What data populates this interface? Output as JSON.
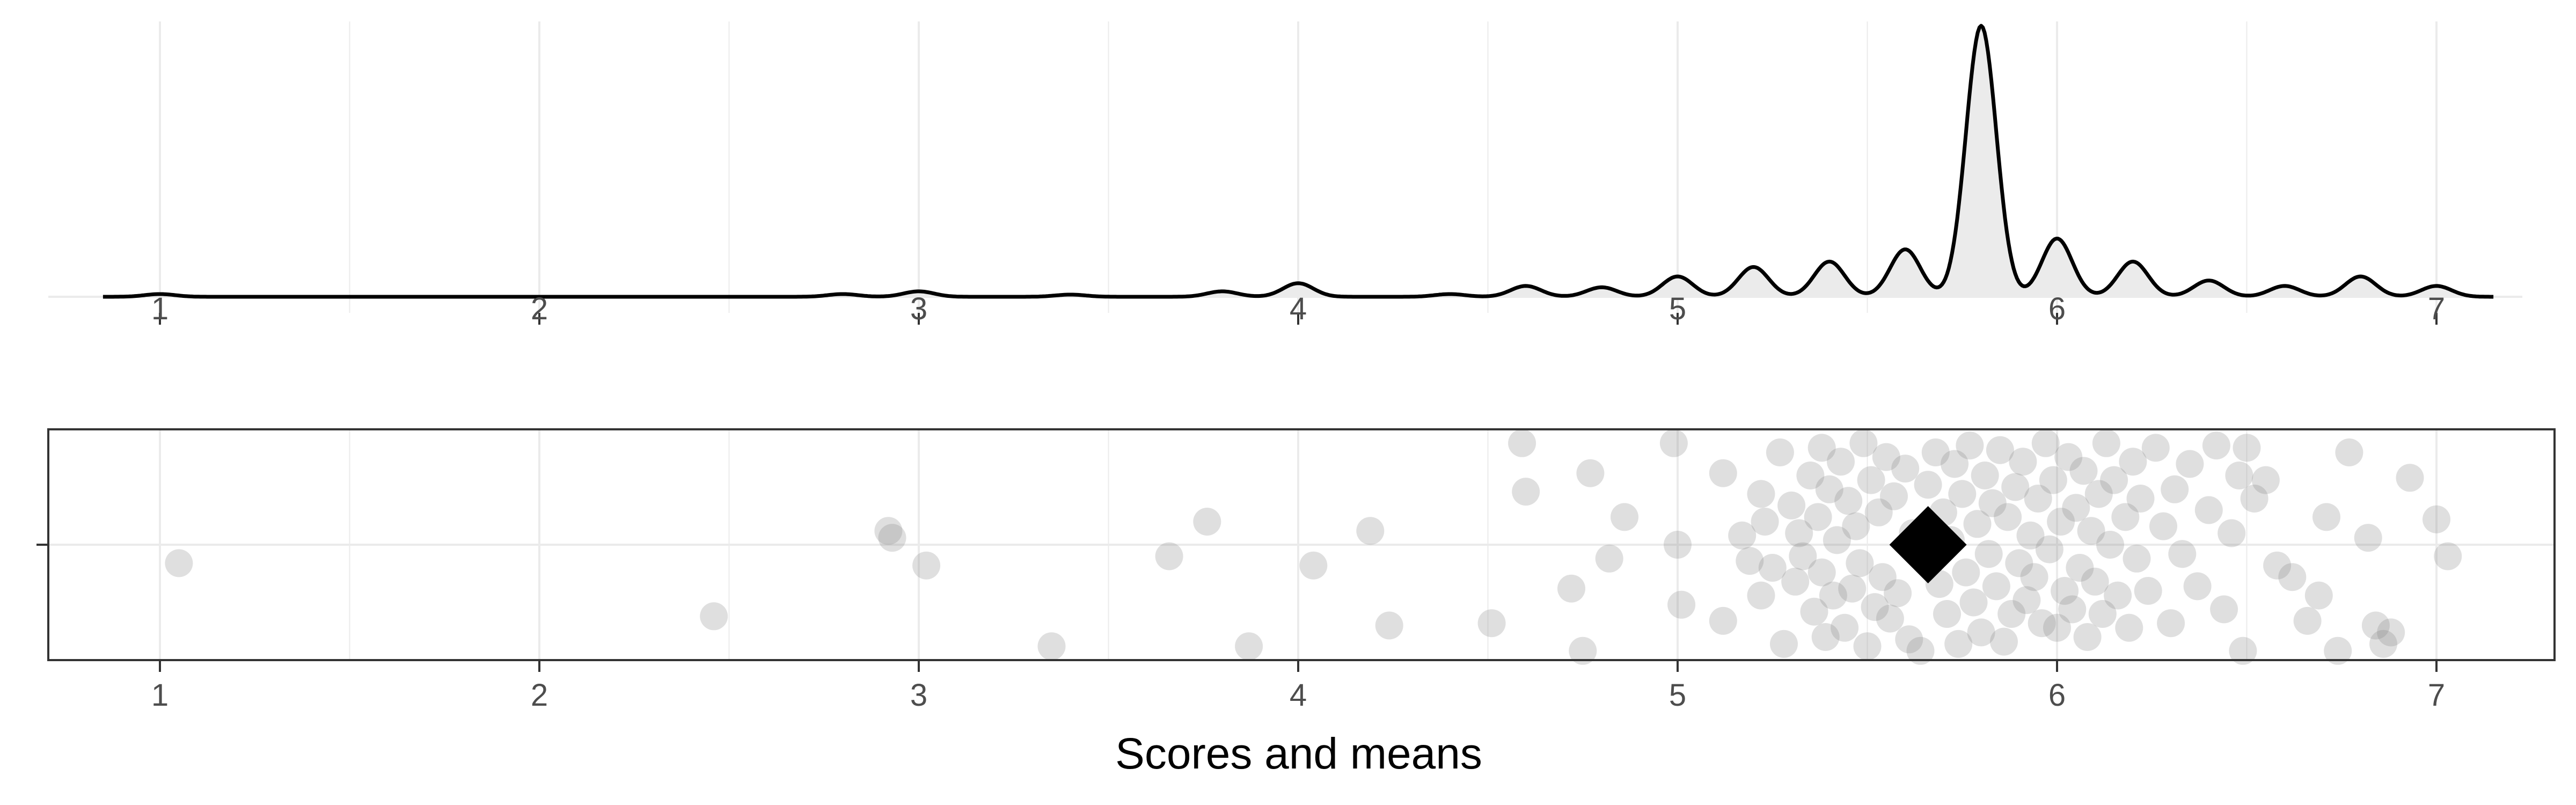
{
  "chart_data": [
    {
      "type": "area",
      "panel": "density",
      "x_ticks": [
        1,
        2,
        3,
        4,
        5,
        6,
        7
      ],
      "x_tick_labels": [
        "1",
        "2",
        "3",
        "4",
        "5",
        "6",
        "7"
      ],
      "xlim": [
        0.85,
        7.15
      ],
      "y_axis_shown": false,
      "grid": true,
      "fill_color": "#ebebeb",
      "line_color": "#000000",
      "density_peaks": [
        {
          "x": 1.0,
          "height": 0.01
        },
        {
          "x": 2.8,
          "height": 0.01
        },
        {
          "x": 3.0,
          "height": 0.02
        },
        {
          "x": 3.4,
          "height": 0.008
        },
        {
          "x": 3.8,
          "height": 0.02
        },
        {
          "x": 4.0,
          "height": 0.05
        },
        {
          "x": 4.4,
          "height": 0.01
        },
        {
          "x": 4.6,
          "height": 0.04
        },
        {
          "x": 4.8,
          "height": 0.035
        },
        {
          "x": 5.0,
          "height": 0.075
        },
        {
          "x": 5.2,
          "height": 0.11
        },
        {
          "x": 5.4,
          "height": 0.13
        },
        {
          "x": 5.6,
          "height": 0.175
        },
        {
          "x": 5.8,
          "height": 1.0
        },
        {
          "x": 6.0,
          "height": 0.215
        },
        {
          "x": 6.2,
          "height": 0.13
        },
        {
          "x": 6.4,
          "height": 0.06
        },
        {
          "x": 6.6,
          "height": 0.04
        },
        {
          "x": 6.8,
          "height": 0.075
        },
        {
          "x": 7.0,
          "height": 0.04
        }
      ]
    },
    {
      "type": "scatter",
      "panel": "jitter",
      "xlabel": "Scores and means",
      "x_ticks": [
        1,
        2,
        3,
        4,
        5,
        6,
        7
      ],
      "x_tick_labels": [
        "1",
        "2",
        "3",
        "4",
        "5",
        "6",
        "7"
      ],
      "xlim": [
        0.7,
        7.3
      ],
      "y_ticks": [
        0
      ],
      "y_tick_labels": [
        ""
      ],
      "ylim": [
        -0.5,
        0.5
      ],
      "grid": true,
      "point_color": "#808080",
      "point_alpha": 0.25,
      "mean_marker": {
        "shape": "diamond",
        "x": 5.66,
        "y": 0,
        "color": "#000000"
      },
      "points": [
        {
          "x": 1.05,
          "y": -0.08
        },
        {
          "x": 2.46,
          "y": -0.31
        },
        {
          "x": 2.92,
          "y": 0.06
        },
        {
          "x": 2.93,
          "y": 0.03
        },
        {
          "x": 3.02,
          "y": -0.09
        },
        {
          "x": 3.35,
          "y": -0.44
        },
        {
          "x": 3.66,
          "y": -0.05
        },
        {
          "x": 3.76,
          "y": 0.1
        },
        {
          "x": 3.87,
          "y": -0.44
        },
        {
          "x": 4.04,
          "y": -0.09
        },
        {
          "x": 4.19,
          "y": 0.06
        },
        {
          "x": 4.24,
          "y": -0.35
        },
        {
          "x": 4.51,
          "y": -0.34
        },
        {
          "x": 4.59,
          "y": 0.44
        },
        {
          "x": 4.6,
          "y": 0.23
        },
        {
          "x": 4.72,
          "y": -0.19
        },
        {
          "x": 4.75,
          "y": -0.46
        },
        {
          "x": 4.77,
          "y": 0.31
        },
        {
          "x": 4.82,
          "y": -0.06
        },
        {
          "x": 4.86,
          "y": 0.12
        },
        {
          "x": 4.99,
          "y": 0.44
        },
        {
          "x": 5.0,
          "y": 0.0
        },
        {
          "x": 5.01,
          "y": -0.26
        },
        {
          "x": 5.12,
          "y": 0.31
        },
        {
          "x": 5.12,
          "y": -0.33
        },
        {
          "x": 5.17,
          "y": 0.04
        },
        {
          "x": 5.19,
          "y": -0.07
        },
        {
          "x": 5.22,
          "y": 0.22
        },
        {
          "x": 5.22,
          "y": -0.22
        },
        {
          "x": 5.23,
          "y": 0.1
        },
        {
          "x": 5.25,
          "y": -0.1
        },
        {
          "x": 5.27,
          "y": 0.4
        },
        {
          "x": 5.28,
          "y": -0.43
        },
        {
          "x": 5.3,
          "y": 0.17
        },
        {
          "x": 5.31,
          "y": -0.16
        },
        {
          "x": 5.32,
          "y": 0.05
        },
        {
          "x": 5.33,
          "y": -0.05
        },
        {
          "x": 5.35,
          "y": 0.3
        },
        {
          "x": 5.36,
          "y": -0.29
        },
        {
          "x": 5.37,
          "y": 0.12
        },
        {
          "x": 5.38,
          "y": -0.12
        },
        {
          "x": 5.38,
          "y": 0.42
        },
        {
          "x": 5.39,
          "y": -0.4
        },
        {
          "x": 5.4,
          "y": 0.24
        },
        {
          "x": 5.41,
          "y": -0.22
        },
        {
          "x": 5.42,
          "y": 0.02
        },
        {
          "x": 5.43,
          "y": 0.36
        },
        {
          "x": 5.44,
          "y": -0.36
        },
        {
          "x": 5.45,
          "y": 0.19
        },
        {
          "x": 5.46,
          "y": -0.19
        },
        {
          "x": 5.47,
          "y": 0.08
        },
        {
          "x": 5.48,
          "y": -0.08
        },
        {
          "x": 5.49,
          "y": 0.44
        },
        {
          "x": 5.5,
          "y": -0.44
        },
        {
          "x": 5.51,
          "y": 0.28
        },
        {
          "x": 5.52,
          "y": -0.27
        },
        {
          "x": 5.53,
          "y": 0.14
        },
        {
          "x": 5.54,
          "y": -0.14
        },
        {
          "x": 5.55,
          "y": 0.38
        },
        {
          "x": 5.56,
          "y": -0.32
        },
        {
          "x": 5.57,
          "y": 0.21
        },
        {
          "x": 5.58,
          "y": -0.21
        },
        {
          "x": 5.6,
          "y": 0.33
        },
        {
          "x": 5.61,
          "y": -0.41
        },
        {
          "x": 5.62,
          "y": 0.05
        },
        {
          "x": 5.64,
          "y": -0.46
        },
        {
          "x": 5.66,
          "y": 0.26
        },
        {
          "x": 5.68,
          "y": 0.4
        },
        {
          "x": 5.69,
          "y": -0.17
        },
        {
          "x": 5.7,
          "y": 0.14
        },
        {
          "x": 5.71,
          "y": -0.3
        },
        {
          "x": 5.72,
          "y": 0.02
        },
        {
          "x": 5.73,
          "y": 0.35
        },
        {
          "x": 5.74,
          "y": -0.43
        },
        {
          "x": 5.75,
          "y": 0.22
        },
        {
          "x": 5.76,
          "y": -0.12
        },
        {
          "x": 5.77,
          "y": 0.43
        },
        {
          "x": 5.78,
          "y": -0.25
        },
        {
          "x": 5.79,
          "y": 0.09
        },
        {
          "x": 5.8,
          "y": -0.38
        },
        {
          "x": 5.81,
          "y": 0.3
        },
        {
          "x": 5.82,
          "y": -0.04
        },
        {
          "x": 5.83,
          "y": 0.18
        },
        {
          "x": 5.84,
          "y": -0.18
        },
        {
          "x": 5.85,
          "y": 0.41
        },
        {
          "x": 5.86,
          "y": -0.42
        },
        {
          "x": 5.87,
          "y": 0.12
        },
        {
          "x": 5.88,
          "y": -0.3
        },
        {
          "x": 5.89,
          "y": 0.25
        },
        {
          "x": 5.9,
          "y": -0.08
        },
        {
          "x": 5.91,
          "y": 0.36
        },
        {
          "x": 5.92,
          "y": -0.24
        },
        {
          "x": 5.93,
          "y": 0.04
        },
        {
          "x": 5.94,
          "y": -0.14
        },
        {
          "x": 5.95,
          "y": 0.2
        },
        {
          "x": 5.96,
          "y": -0.34
        },
        {
          "x": 5.97,
          "y": 0.44
        },
        {
          "x": 5.98,
          "y": -0.02
        },
        {
          "x": 5.99,
          "y": 0.28
        },
        {
          "x": 6.0,
          "y": -0.36
        },
        {
          "x": 6.01,
          "y": 0.1
        },
        {
          "x": 6.02,
          "y": -0.2
        },
        {
          "x": 6.03,
          "y": 0.38
        },
        {
          "x": 6.04,
          "y": -0.28
        },
        {
          "x": 6.05,
          "y": 0.16
        },
        {
          "x": 6.06,
          "y": -0.1
        },
        {
          "x": 6.07,
          "y": 0.32
        },
        {
          "x": 6.08,
          "y": -0.4
        },
        {
          "x": 6.09,
          "y": 0.06
        },
        {
          "x": 6.1,
          "y": -0.16
        },
        {
          "x": 6.11,
          "y": 0.22
        },
        {
          "x": 6.12,
          "y": -0.3
        },
        {
          "x": 6.13,
          "y": 0.44
        },
        {
          "x": 6.14,
          "y": 0.0
        },
        {
          "x": 6.15,
          "y": 0.28
        },
        {
          "x": 6.16,
          "y": -0.22
        },
        {
          "x": 6.18,
          "y": 0.12
        },
        {
          "x": 6.19,
          "y": -0.36
        },
        {
          "x": 6.2,
          "y": 0.36
        },
        {
          "x": 6.21,
          "y": -0.06
        },
        {
          "x": 6.22,
          "y": 0.2
        },
        {
          "x": 6.24,
          "y": -0.2
        },
        {
          "x": 6.26,
          "y": 0.42
        },
        {
          "x": 6.28,
          "y": 0.08
        },
        {
          "x": 6.3,
          "y": -0.34
        },
        {
          "x": 6.31,
          "y": 0.24
        },
        {
          "x": 6.33,
          "y": -0.04
        },
        {
          "x": 6.35,
          "y": 0.35
        },
        {
          "x": 6.37,
          "y": -0.18
        },
        {
          "x": 6.4,
          "y": 0.15
        },
        {
          "x": 6.42,
          "y": 0.43
        },
        {
          "x": 6.44,
          "y": -0.28
        },
        {
          "x": 6.46,
          "y": 0.05
        },
        {
          "x": 6.48,
          "y": 0.3
        },
        {
          "x": 6.49,
          "y": -0.46
        },
        {
          "x": 6.5,
          "y": 0.42
        },
        {
          "x": 6.52,
          "y": 0.2
        },
        {
          "x": 6.55,
          "y": 0.28
        },
        {
          "x": 6.58,
          "y": -0.09
        },
        {
          "x": 6.62,
          "y": -0.14
        },
        {
          "x": 6.66,
          "y": -0.33
        },
        {
          "x": 6.69,
          "y": -0.22
        },
        {
          "x": 6.71,
          "y": 0.12
        },
        {
          "x": 6.74,
          "y": -0.46
        },
        {
          "x": 6.77,
          "y": 0.4
        },
        {
          "x": 6.82,
          "y": 0.03
        },
        {
          "x": 6.84,
          "y": -0.35
        },
        {
          "x": 6.86,
          "y": -0.43
        },
        {
          "x": 6.88,
          "y": -0.38
        },
        {
          "x": 6.93,
          "y": 0.29
        },
        {
          "x": 7.0,
          "y": 0.11
        },
        {
          "x": 7.03,
          "y": -0.05
        }
      ]
    }
  ]
}
